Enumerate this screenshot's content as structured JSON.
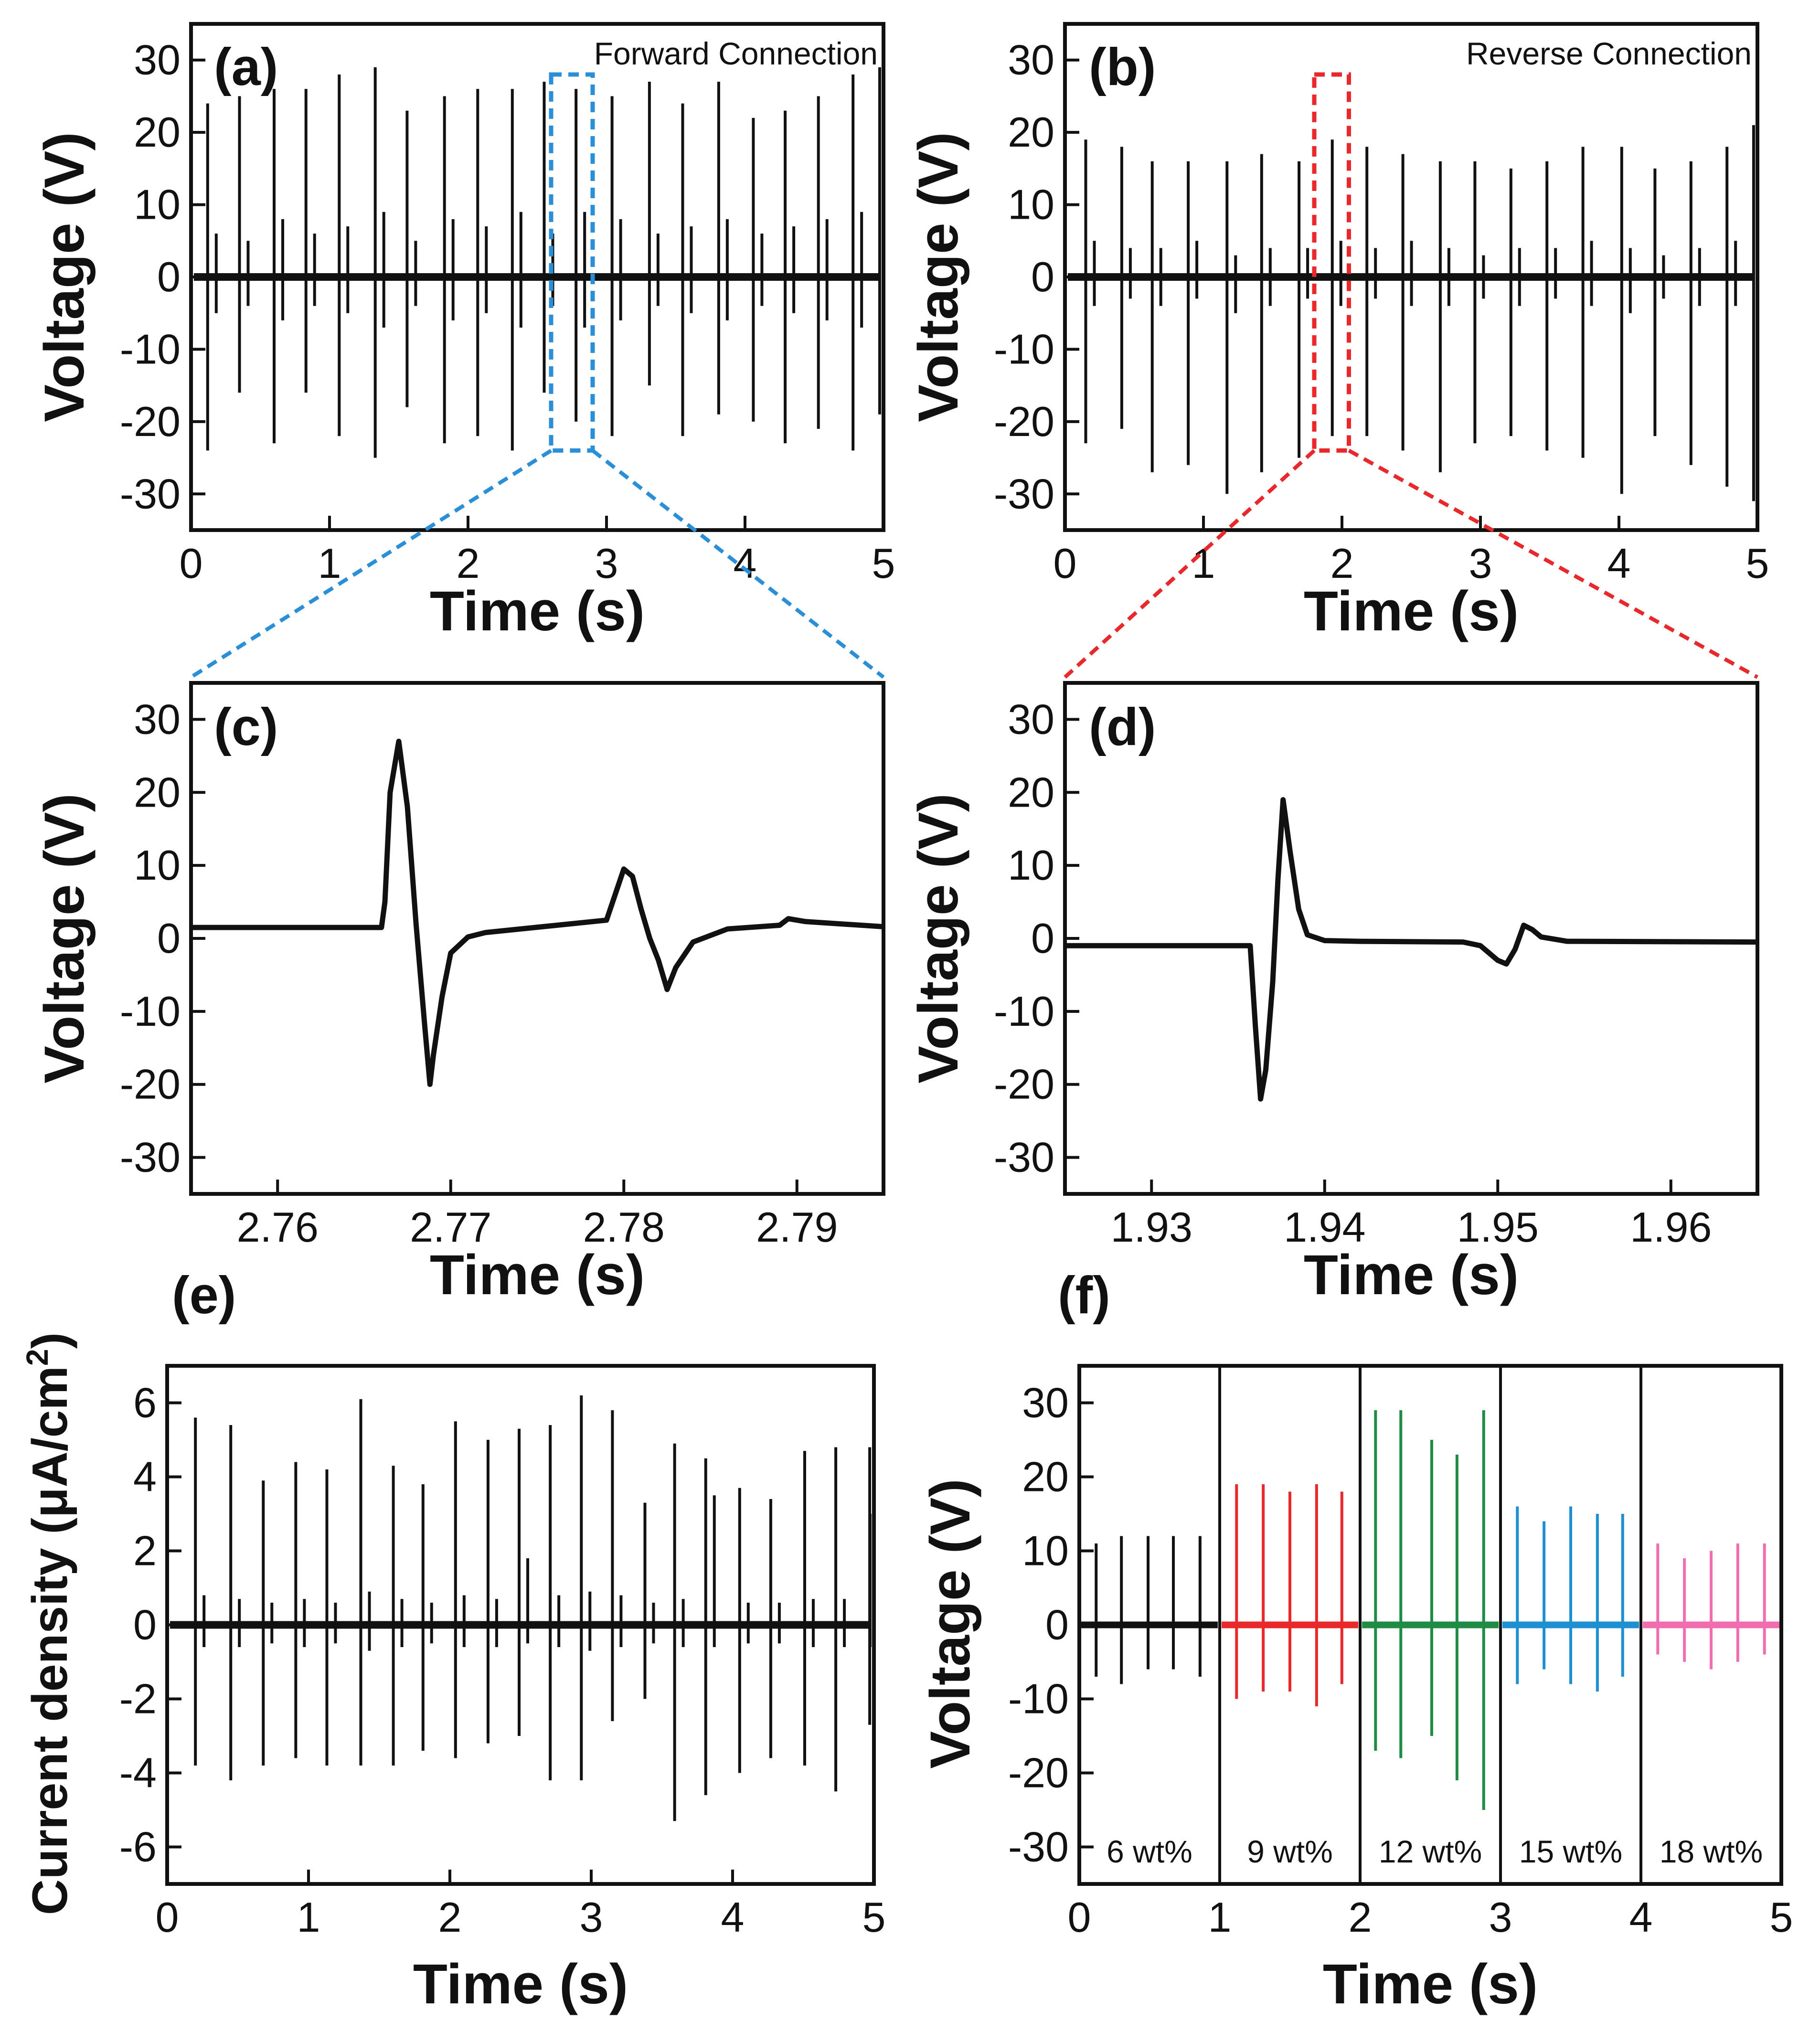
{
  "figure": {
    "colors": {
      "ink": "#111111",
      "blue": "#2a8fd6",
      "red": "#e8282b",
      "green": "#1f8b45",
      "cyan": "#1e8fd0",
      "pink": "#f06eb0"
    }
  },
  "chart_data": [
    {
      "id": "a",
      "type": "line",
      "panel_label": "(a)",
      "annotation": "Forward Connection",
      "xlabel": "Time (s)",
      "ylabel": "Voltage (V)",
      "xlim": [
        0,
        5
      ],
      "ylim": [
        -35,
        35
      ],
      "xticks": [
        0,
        1,
        2,
        3,
        4,
        5
      ],
      "yticks": [
        30,
        20,
        10,
        0,
        -10,
        -20,
        -30
      ],
      "pulses": {
        "t": [
          0.12,
          0.35,
          0.6,
          0.83,
          1.07,
          1.33,
          1.56,
          1.83,
          2.07,
          2.32,
          2.55,
          2.78,
          3.04,
          3.31,
          3.55,
          3.81,
          4.06,
          4.29,
          4.53,
          4.78,
          5.0
        ],
        "peak": [
          24,
          25,
          26,
          26,
          28,
          29,
          23,
          25,
          26,
          26,
          27,
          26,
          25,
          27,
          24,
          27,
          22,
          23,
          25,
          28,
          29
        ],
        "trough": [
          -24,
          -16,
          -23,
          -16,
          -22,
          -25,
          -18,
          -23,
          -22,
          -24,
          -16,
          -20,
          -22,
          -15,
          -22,
          -19,
          -20,
          -23,
          -21,
          -24,
          -19
        ],
        "secondary_peak": [
          6,
          5,
          8,
          6,
          7,
          9,
          5,
          8,
          7,
          9,
          6,
          9,
          8,
          6,
          7,
          8,
          6,
          7,
          8,
          9,
          7
        ],
        "secondary_trough": [
          -5,
          -4,
          -6,
          -4,
          -5,
          -7,
          -4,
          -6,
          -5,
          -7,
          -4,
          -7,
          -6,
          -4,
          -5,
          -6,
          -4,
          -5,
          -6,
          -7,
          -5
        ]
      },
      "highlight_window": {
        "x": [
          2.6,
          2.9
        ],
        "y": [
          -24,
          28
        ]
      }
    },
    {
      "id": "b",
      "type": "line",
      "panel_label": "(b)",
      "annotation": "Reverse Connection",
      "xlabel": "Time (s)",
      "ylabel": "Voltage (V)",
      "xlim": [
        0,
        5
      ],
      "ylim": [
        -35,
        35
      ],
      "xticks": [
        0,
        1,
        2,
        3,
        4,
        5
      ],
      "yticks": [
        30,
        20,
        10,
        0,
        -10,
        -20,
        -30
      ],
      "pulses": {
        "t": [
          0.15,
          0.41,
          0.63,
          0.89,
          1.17,
          1.42,
          1.69,
          1.93,
          2.18,
          2.44,
          2.71,
          2.96,
          3.22,
          3.48,
          3.74,
          4.02,
          4.26,
          4.52,
          4.78,
          4.99
        ],
        "peak": [
          19,
          18,
          16,
          16,
          16,
          17,
          16,
          19,
          18,
          17,
          16,
          16,
          15,
          16,
          18,
          18,
          15,
          16,
          18,
          21
        ],
        "trough": [
          -23,
          -21,
          -27,
          -26,
          -30,
          -27,
          -25,
          -22,
          -22,
          -24,
          -27,
          -23,
          -22,
          -24,
          -25,
          -30,
          -22,
          -26,
          -29,
          -31
        ],
        "secondary_peak": [
          5,
          4,
          4,
          5,
          3,
          4,
          4,
          5,
          4,
          5,
          4,
          3,
          4,
          4,
          5,
          4,
          3,
          4,
          5,
          5
        ],
        "secondary_trough": [
          -4,
          -3,
          -4,
          -3,
          -5,
          -4,
          -3,
          -4,
          -3,
          -4,
          -4,
          -3,
          -4,
          -3,
          -4,
          -5,
          -3,
          -4,
          -4,
          -5
        ]
      },
      "highlight_window": {
        "x": [
          1.8,
          2.05
        ],
        "y": [
          -24,
          28
        ]
      }
    },
    {
      "id": "c",
      "type": "line",
      "panel_label": "(c)",
      "xlabel": "Time (s)",
      "ylabel": "Voltage (V)",
      "xlim": [
        2.755,
        2.795
      ],
      "ylim": [
        -35,
        35
      ],
      "xticks": [
        2.76,
        2.77,
        2.78,
        2.79
      ],
      "yticks": [
        30,
        20,
        10,
        0,
        -10,
        -20,
        -30
      ],
      "x": [
        2.755,
        2.766,
        2.7662,
        2.7665,
        2.767,
        2.7675,
        2.768,
        2.7685,
        2.7688,
        2.769,
        2.7695,
        2.77,
        2.771,
        2.772,
        2.779,
        2.7795,
        2.78,
        2.7805,
        2.781,
        2.7815,
        2.782,
        2.7825,
        2.783,
        2.784,
        2.786,
        2.789,
        2.7895,
        2.7905,
        2.795
      ],
      "y": [
        1.5,
        1.5,
        5,
        20,
        27,
        18,
        2,
        -12,
        -20,
        -16,
        -8,
        -2,
        0.2,
        0.8,
        2.5,
        6,
        9.5,
        8.5,
        4,
        0,
        -3,
        -7,
        -4,
        -0.5,
        1.3,
        1.8,
        2.7,
        2.3,
        1.6
      ]
    },
    {
      "id": "d",
      "type": "line",
      "panel_label": "(d)",
      "xlabel": "Time (s)",
      "ylabel": "Voltage (V)",
      "xlim": [
        1.925,
        1.965
      ],
      "ylim": [
        -35,
        35
      ],
      "xticks": [
        1.93,
        1.94,
        1.95,
        1.96
      ],
      "yticks": [
        30,
        20,
        10,
        0,
        -10,
        -20,
        -30
      ],
      "x": [
        1.925,
        1.9357,
        1.936,
        1.9363,
        1.9366,
        1.937,
        1.9373,
        1.9376,
        1.938,
        1.9385,
        1.939,
        1.94,
        1.942,
        1.948,
        1.949,
        1.95,
        1.9505,
        1.951,
        1.9515,
        1.952,
        1.9525,
        1.954,
        1.965
      ],
      "y": [
        -1,
        -1,
        -12,
        -22,
        -18,
        -6,
        8,
        19,
        12,
        4,
        0.5,
        -0.3,
        -0.4,
        -0.5,
        -1,
        -3,
        -3.5,
        -1.5,
        1.8,
        1.2,
        0.2,
        -0.4,
        -0.5
      ]
    },
    {
      "id": "e",
      "type": "line",
      "panel_label": "(e)",
      "xlabel": "Time (s)",
      "ylabel": "Current density (μA/cm",
      "ylabel_superscript": "2",
      "ylabel_close": ")",
      "xlim": [
        0,
        5
      ],
      "ylim": [
        -7,
        7
      ],
      "xticks": [
        0,
        1,
        2,
        3,
        4,
        5
      ],
      "yticks": [
        6,
        4,
        2,
        0,
        -2,
        -4,
        -6
      ],
      "pulses": {
        "t": [
          0.2,
          0.45,
          0.68,
          0.91,
          1.13,
          1.37,
          1.6,
          1.81,
          2.04,
          2.27,
          2.49,
          2.71,
          2.93,
          3.15,
          3.38,
          3.59,
          3.81,
          4.05,
          4.27,
          4.51,
          4.73,
          4.97
        ],
        "peak": [
          5.6,
          5.4,
          3.9,
          4.4,
          4.2,
          6.1,
          4.3,
          3.8,
          5.5,
          5.0,
          5.3,
          5.4,
          6.2,
          5.8,
          3.3,
          4.9,
          4.5,
          3.7,
          3.4,
          4.7,
          4.8,
          4.8
        ],
        "trough": [
          -3.8,
          -4.2,
          -3.8,
          -3.6,
          -3.8,
          -3.8,
          -3.8,
          -3.4,
          -3.6,
          -3.2,
          -3.0,
          -4.2,
          -4.2,
          -2.6,
          -2.0,
          -5.3,
          -4.6,
          -4.0,
          -3.6,
          -3.8,
          -4.5,
          -2.7
        ],
        "secondary_peak": [
          0.8,
          0.7,
          0.6,
          0.7,
          0.6,
          0.9,
          0.7,
          0.6,
          0.8,
          0.7,
          1.8,
          0.8,
          0.9,
          0.8,
          0.6,
          0.7,
          3.5,
          0.6,
          0.6,
          0.7,
          0.7,
          3.0
        ],
        "secondary_trough": [
          -0.6,
          -0.6,
          -0.5,
          -0.6,
          -0.5,
          -0.7,
          -0.6,
          -0.5,
          -0.6,
          -0.6,
          -0.5,
          -0.6,
          -0.7,
          -0.6,
          -0.5,
          -0.6,
          -0.6,
          -0.5,
          -0.5,
          -0.6,
          -0.6,
          -0.6
        ]
      }
    },
    {
      "id": "f",
      "type": "line",
      "panel_label": "(f)",
      "xlabel": "Time (s)",
      "ylabel": "Voltage (V)",
      "xlim": [
        0,
        5
      ],
      "ylim": [
        -35,
        35
      ],
      "xticks": [
        0,
        1,
        2,
        3,
        4,
        5
      ],
      "yticks": [
        30,
        20,
        10,
        0,
        -10,
        -20,
        -30
      ],
      "segments": [
        {
          "label": "6 wt%",
          "range": [
            0,
            1
          ],
          "color": "#111111",
          "t": [
            0.12,
            0.3,
            0.49,
            0.67,
            0.86
          ],
          "peak": [
            11,
            12,
            12,
            12,
            12
          ],
          "trough": [
            -7,
            -8,
            -6,
            -6,
            -7
          ]
        },
        {
          "label": "9 wt%",
          "range": [
            1,
            2
          ],
          "color": "#e8282b",
          "t": [
            1.12,
            1.31,
            1.5,
            1.69,
            1.87
          ],
          "peak": [
            19,
            19,
            18,
            19,
            18
          ],
          "trough": [
            -10,
            -9,
            -9,
            -11,
            -8
          ]
        },
        {
          "label": "12 wt%",
          "range": [
            2,
            3
          ],
          "color": "#1f8b45",
          "t": [
            2.11,
            2.29,
            2.51,
            2.69,
            2.88
          ],
          "peak": [
            29,
            29,
            25,
            23,
            29
          ],
          "trough": [
            -17,
            -18,
            -15,
            -21,
            -25
          ]
        },
        {
          "label": "15 wt%",
          "range": [
            3,
            4
          ],
          "color": "#1e8fd0",
          "t": [
            3.12,
            3.31,
            3.5,
            3.69,
            3.87
          ],
          "peak": [
            16,
            14,
            16,
            15,
            15
          ],
          "trough": [
            -8,
            -6,
            -8,
            -9,
            -7
          ]
        },
        {
          "label": "18 wt%",
          "range": [
            4,
            5
          ],
          "color": "#f06eb0",
          "t": [
            4.12,
            4.31,
            4.5,
            4.69,
            4.88
          ],
          "peak": [
            11,
            9,
            10,
            11,
            11
          ],
          "trough": [
            -4,
            -5,
            -6,
            -5,
            -4
          ]
        }
      ]
    }
  ]
}
